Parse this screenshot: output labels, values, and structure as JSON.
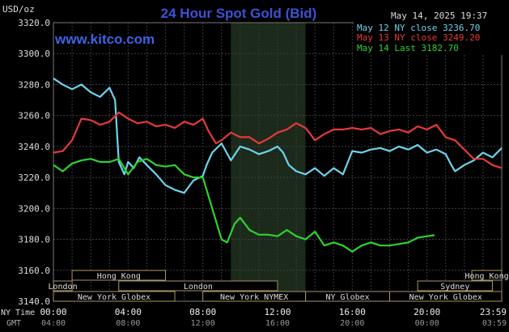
{
  "chart_data": {
    "type": "line",
    "title": "24 Hour Spot Gold (Bid)",
    "watermark": "www.kitco.com",
    "timestamp": "May 14, 2025 19:37",
    "ylabel": "USD/oz",
    "ylim": [
      3140,
      3320
    ],
    "y_ticks": [
      "3140.0",
      "3160.0",
      "3180.0",
      "3200.0",
      "3220.0",
      "3240.0",
      "3260.0",
      "3280.0",
      "3300.0",
      "3320.0"
    ],
    "x_ticks_ny": [
      "00:00",
      "04:00",
      "08:00",
      "12:00",
      "16:00",
      "20:00",
      "23:59"
    ],
    "x_ticks_gmt": [
      "04:00",
      "08:00",
      "12:00",
      "16:00",
      "20:00",
      "00:00",
      "03:59"
    ],
    "x_ticks_hours": [
      0,
      4,
      8,
      12,
      16,
      20,
      23.983
    ],
    "nytime_label": "NY Time",
    "gmt_label": "GMT",
    "highlight_hours": [
      9.5,
      13.5
    ],
    "legend": [
      "May 12 NY close 3236.70",
      "May 13 NY close 3249.20",
      "May 14 Last 3182.70"
    ],
    "sessions": [
      {
        "label": "Hong Kong",
        "start": 1.0,
        "end": 6.0,
        "row": 0
      },
      {
        "label": "Hong Kong",
        "start": 22.4,
        "end": 26.5,
        "row": 0
      },
      {
        "label": "London",
        "start": -1.0,
        "end": 1.0,
        "row": 1
      },
      {
        "label": "London",
        "start": 3.5,
        "end": 12.0,
        "row": 1
      },
      {
        "label": "Sydney",
        "start": 19.5,
        "end": 23.5,
        "row": 1
      },
      {
        "label": "New York Globex",
        "start": -1.0,
        "end": 6.5,
        "row": 2
      },
      {
        "label": "New York NYMEX",
        "start": 8.0,
        "end": 13.5,
        "row": 2
      },
      {
        "label": "NY Globex",
        "start": 13.5,
        "end": 18.0,
        "row": 2
      },
      {
        "label": "New York Globex",
        "start": 18.0,
        "end": 26.5,
        "row": 2
      }
    ],
    "series": [
      {
        "name": "May 12 NY close 3236.70",
        "color": "#6fd3ec",
        "points": [
          [
            0,
            3284
          ],
          [
            0.5,
            3280
          ],
          [
            1,
            3277
          ],
          [
            1.5,
            3280
          ],
          [
            2,
            3275
          ],
          [
            2.5,
            3272
          ],
          [
            3,
            3278
          ],
          [
            3.3,
            3270
          ],
          [
            3.5,
            3230
          ],
          [
            3.8,
            3222
          ],
          [
            4,
            3230
          ],
          [
            4.3,
            3226
          ],
          [
            4.6,
            3233
          ],
          [
            5,
            3228
          ],
          [
            5.5,
            3222
          ],
          [
            6,
            3215
          ],
          [
            6.5,
            3212
          ],
          [
            7,
            3210
          ],
          [
            7.5,
            3218
          ],
          [
            8,
            3221
          ],
          [
            8.2,
            3228
          ],
          [
            8.5,
            3236
          ],
          [
            9,
            3242
          ],
          [
            9.5,
            3231
          ],
          [
            10,
            3240
          ],
          [
            10.5,
            3238
          ],
          [
            11,
            3235
          ],
          [
            11.5,
            3237
          ],
          [
            12,
            3240
          ],
          [
            12.3,
            3236
          ],
          [
            12.6,
            3228
          ],
          [
            13,
            3224
          ],
          [
            13.5,
            3222
          ],
          [
            14,
            3226
          ],
          [
            14.5,
            3221
          ],
          [
            15,
            3226
          ],
          [
            15.5,
            3222
          ],
          [
            16,
            3237
          ],
          [
            16.5,
            3236
          ],
          [
            17,
            3238
          ],
          [
            17.5,
            3239
          ],
          [
            18,
            3237
          ],
          [
            18.5,
            3240
          ],
          [
            19,
            3238
          ],
          [
            19.5,
            3241
          ],
          [
            20,
            3236
          ],
          [
            20.5,
            3238
          ],
          [
            21,
            3235
          ],
          [
            21.3,
            3228
          ],
          [
            21.5,
            3224
          ],
          [
            22,
            3228
          ],
          [
            22.5,
            3231
          ],
          [
            23,
            3236
          ],
          [
            23.5,
            3233
          ],
          [
            24,
            3239
          ]
        ]
      },
      {
        "name": "May 13 NY close 3249.20",
        "color": "#e53a3a",
        "points": [
          [
            0,
            3236
          ],
          [
            0.5,
            3237
          ],
          [
            1,
            3244
          ],
          [
            1.5,
            3258
          ],
          [
            2,
            3257
          ],
          [
            2.5,
            3254
          ],
          [
            3,
            3256
          ],
          [
            3.5,
            3262
          ],
          [
            4,
            3258
          ],
          [
            4.5,
            3255
          ],
          [
            5,
            3256
          ],
          [
            5.5,
            3253
          ],
          [
            6,
            3254
          ],
          [
            6.5,
            3252
          ],
          [
            7,
            3256
          ],
          [
            7.5,
            3254
          ],
          [
            8,
            3258
          ],
          [
            8.3,
            3250
          ],
          [
            8.7,
            3242
          ],
          [
            9,
            3244
          ],
          [
            9.5,
            3249
          ],
          [
            10,
            3246
          ],
          [
            10.5,
            3246
          ],
          [
            11,
            3242
          ],
          [
            11.5,
            3245
          ],
          [
            12,
            3249
          ],
          [
            12.5,
            3251
          ],
          [
            13,
            3255
          ],
          [
            13.5,
            3252
          ],
          [
            14,
            3244
          ],
          [
            14.5,
            3248
          ],
          [
            15,
            3251
          ],
          [
            15.5,
            3251
          ],
          [
            16,
            3252
          ],
          [
            16.5,
            3251
          ],
          [
            17,
            3252
          ],
          [
            17.5,
            3248
          ],
          [
            18,
            3250
          ],
          [
            18.5,
            3251
          ],
          [
            19,
            3249
          ],
          [
            19.5,
            3253
          ],
          [
            20,
            3251
          ],
          [
            20.5,
            3254
          ],
          [
            21,
            3246
          ],
          [
            21.5,
            3244
          ],
          [
            22,
            3238
          ],
          [
            22.5,
            3232
          ],
          [
            23,
            3232
          ],
          [
            23.5,
            3228
          ],
          [
            24,
            3226
          ]
        ]
      },
      {
        "name": "May 14 Last 3182.70",
        "color": "#2fd12f",
        "points": [
          [
            0,
            3228
          ],
          [
            0.5,
            3224
          ],
          [
            1,
            3229
          ],
          [
            1.5,
            3231
          ],
          [
            2,
            3232
          ],
          [
            2.5,
            3230
          ],
          [
            3,
            3230
          ],
          [
            3.5,
            3232
          ],
          [
            4,
            3222
          ],
          [
            4.5,
            3230
          ],
          [
            5,
            3232
          ],
          [
            5.5,
            3228
          ],
          [
            6,
            3227
          ],
          [
            6.5,
            3228
          ],
          [
            7,
            3222
          ],
          [
            7.5,
            3220
          ],
          [
            8,
            3220
          ],
          [
            8.3,
            3208
          ],
          [
            8.6,
            3196
          ],
          [
            9,
            3180
          ],
          [
            9.3,
            3178
          ],
          [
            9.7,
            3190
          ],
          [
            10,
            3194
          ],
          [
            10.5,
            3186
          ],
          [
            11,
            3183
          ],
          [
            11.5,
            3183
          ],
          [
            12,
            3182
          ],
          [
            12.5,
            3186
          ],
          [
            13,
            3182
          ],
          [
            13.5,
            3180
          ],
          [
            14,
            3185
          ],
          [
            14.5,
            3176
          ],
          [
            15,
            3178
          ],
          [
            15.5,
            3176
          ],
          [
            16,
            3172
          ],
          [
            16.5,
            3176
          ],
          [
            17,
            3178
          ],
          [
            17.5,
            3176
          ],
          [
            18,
            3176
          ],
          [
            18.5,
            3177
          ],
          [
            19,
            3178
          ],
          [
            19.5,
            3181
          ],
          [
            20,
            3182
          ],
          [
            20.4,
            3182.7
          ]
        ]
      }
    ]
  }
}
